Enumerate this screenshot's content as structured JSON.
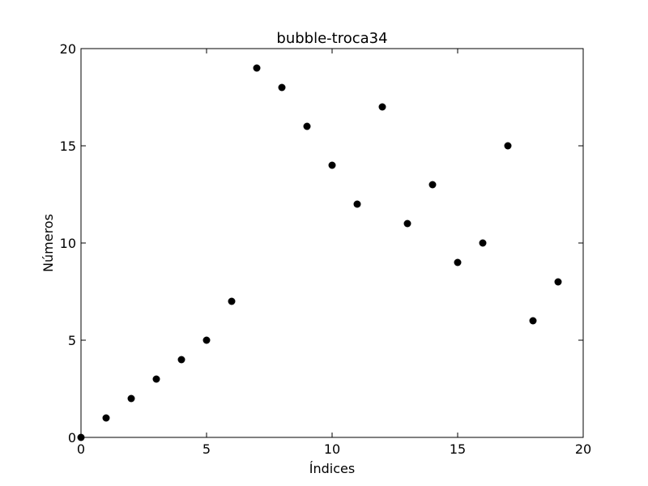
{
  "chart_data": {
    "type": "scatter",
    "title": "bubble-troca34",
    "xlabel": "Índices",
    "ylabel": "Números",
    "xlim": [
      0,
      20
    ],
    "ylim": [
      0,
      20
    ],
    "xticks": [
      "0",
      "5",
      "10",
      "15",
      "20"
    ],
    "yticks": [
      "0",
      "5",
      "10",
      "15",
      "20"
    ],
    "grid": false,
    "marker_color": "#000000",
    "series": [
      {
        "x": [
          0,
          1,
          2,
          3,
          4,
          5,
          6,
          7,
          8,
          9,
          10,
          11,
          12,
          13,
          14,
          15,
          16,
          17,
          18,
          19
        ],
        "y": [
          0,
          1,
          2,
          3,
          4,
          5,
          7,
          19,
          18,
          16,
          14,
          12,
          17,
          11,
          13,
          9,
          10,
          15,
          6,
          8
        ]
      }
    ]
  }
}
